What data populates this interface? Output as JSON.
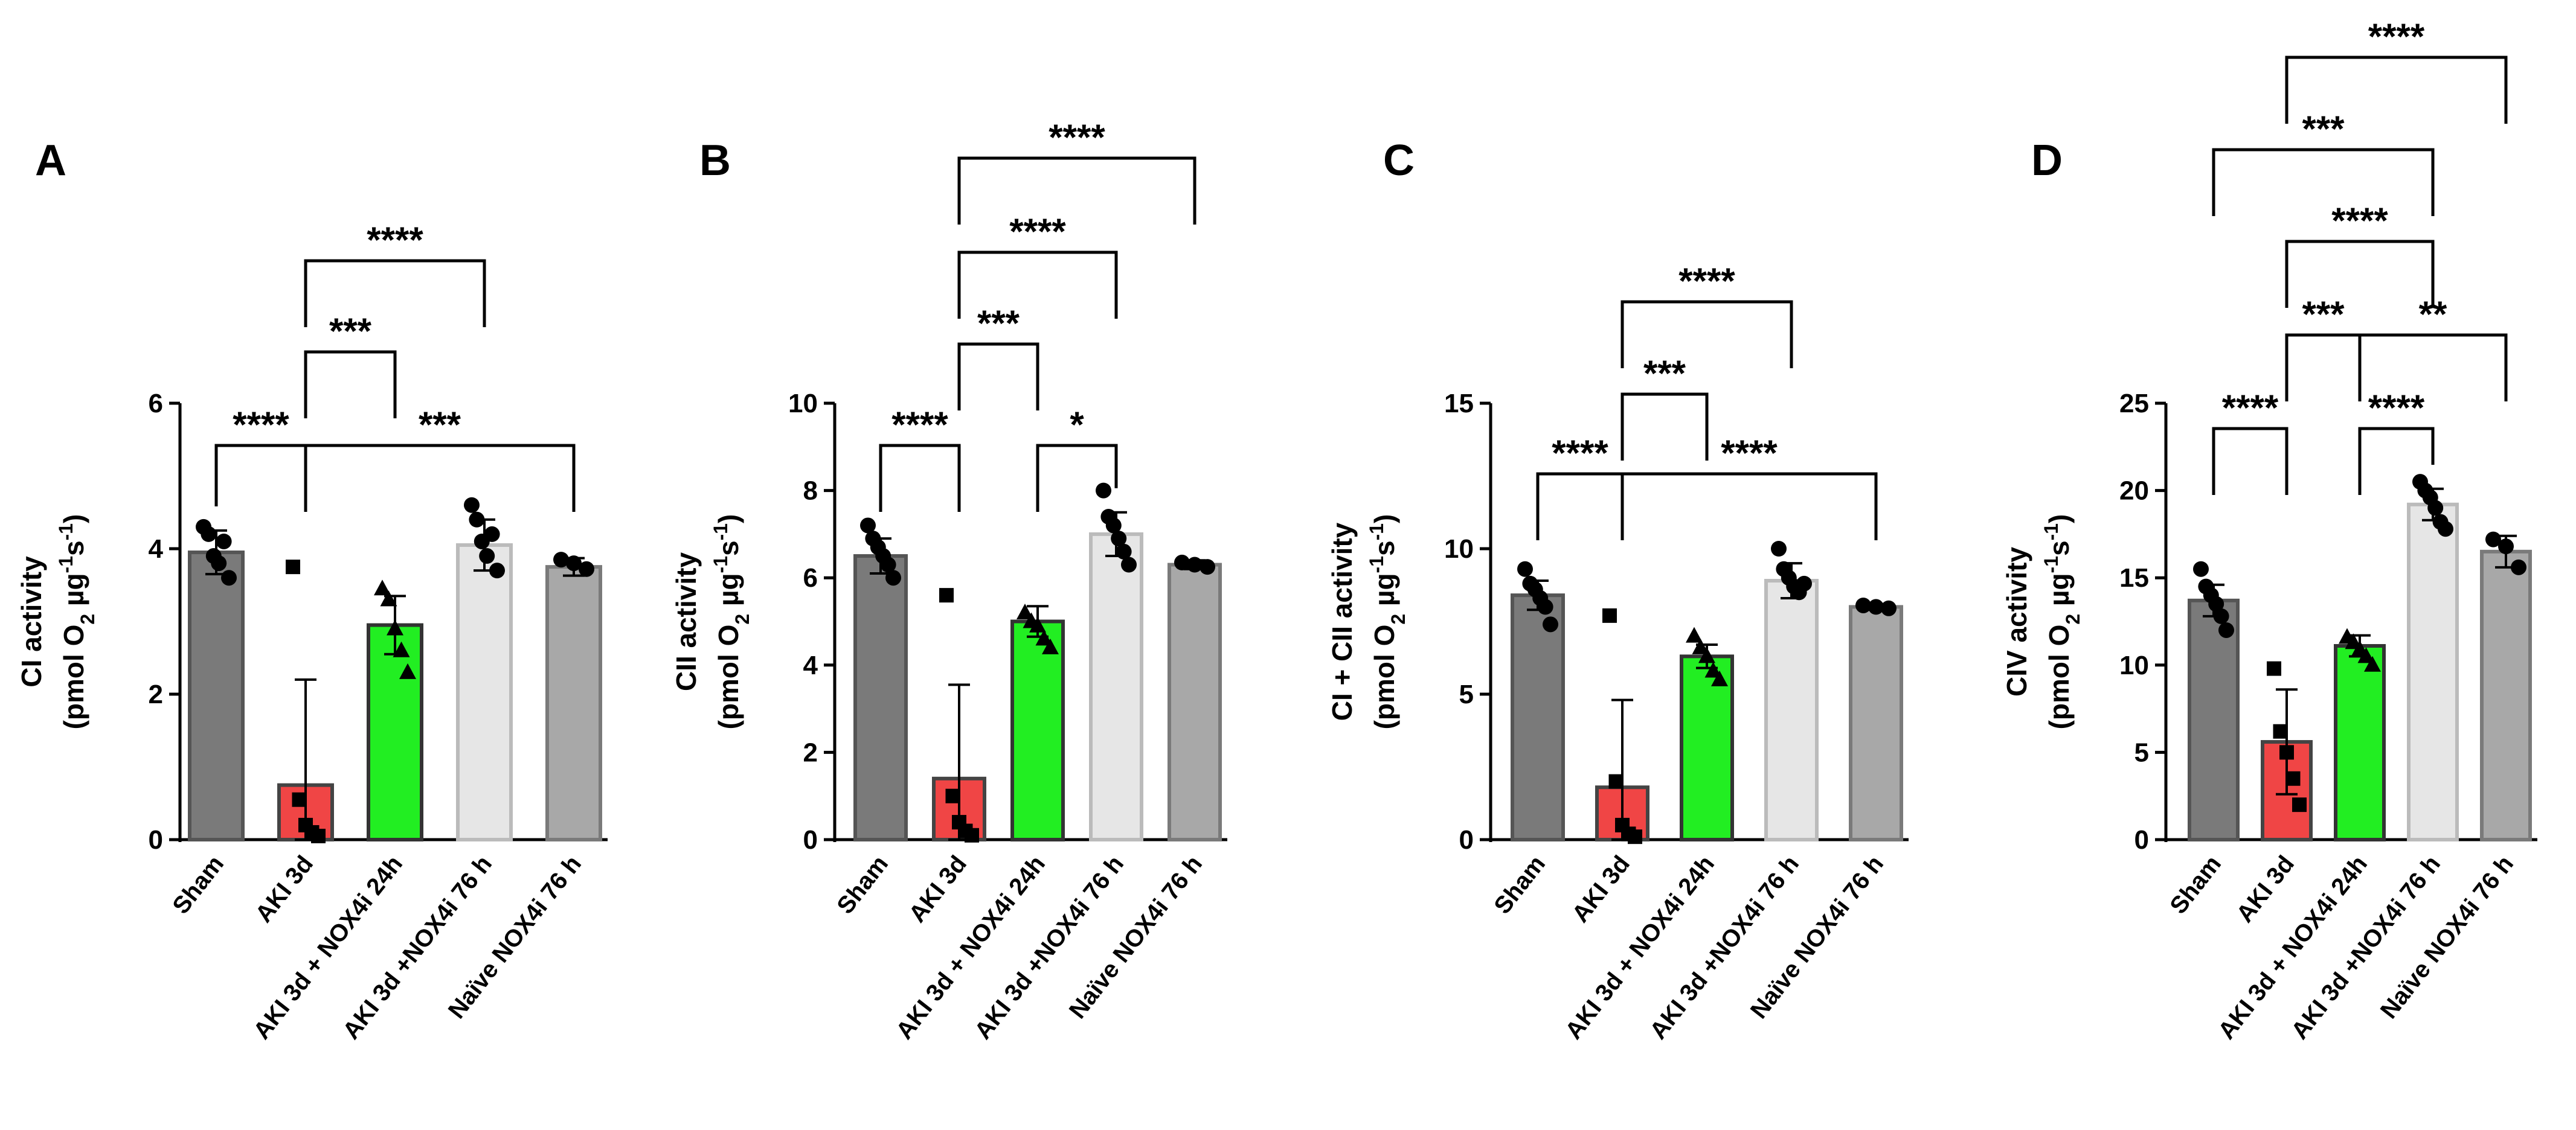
{
  "colors": {
    "sham": "#7a7a7a",
    "aki": "#f04545",
    "aki_nox24": "#22ee22",
    "aki_nox76": "#e6e6e6",
    "naive": "#a8a8a8",
    "ink": "#000000"
  },
  "chart_data": [
    {
      "panel": "A",
      "type": "bar",
      "categories": [
        "Sham",
        "AKI 3d",
        "AKI 3d + NOX4i 24h",
        "AKI 3d +NOX4i 76 h",
        "Naïve NOX4i 76 h"
      ],
      "values": [
        3.95,
        0.75,
        2.95,
        4.05,
        3.75
      ],
      "errors": [
        0.3,
        1.45,
        0.4,
        0.35,
        0.12
      ],
      "points": [
        [
          4.3,
          4.2,
          3.9,
          3.8,
          4.1,
          3.6
        ],
        [
          3.75,
          0.55,
          0.2,
          0.1,
          0.05
        ],
        [
          3.45,
          3.3,
          2.9,
          2.6,
          2.3
        ],
        [
          4.6,
          4.4,
          4.1,
          3.9,
          4.2,
          3.7
        ],
        [
          3.85,
          3.8,
          3.72
        ]
      ],
      "markers": [
        "circle",
        "square",
        "triangle",
        "circle",
        "circle"
      ],
      "ylabel": "CI activity",
      "ylabel2": "(pmol O",
      "ylabel_sub": "2",
      "ylabel_unit": " µg",
      "ylabel_sup1": "-1",
      "ylabel_s": "s",
      "ylabel_sup2": "-1",
      "ylabel_close": ")",
      "ylim": [
        0,
        6
      ],
      "yticks": [
        "0",
        "2",
        "4",
        "6"
      ],
      "brackets": [
        {
          "from": 0,
          "to": 1,
          "level": 1,
          "label": "****"
        },
        {
          "from": 1,
          "to": 4,
          "level": 1,
          "label": "***"
        },
        {
          "from": 1,
          "to": 2,
          "level": 2,
          "label": "***"
        },
        {
          "from": 1,
          "to": 3,
          "level": 3,
          "label": "****"
        }
      ]
    },
    {
      "panel": "B",
      "type": "bar",
      "categories": [
        "Sham",
        "AKI 3d",
        "AKI 3d + NOX4i 24h",
        "AKI 3d +NOX4i 76 h",
        "Naïve NOX4i 76 h"
      ],
      "values": [
        6.5,
        1.4,
        5.0,
        7.0,
        6.3
      ],
      "errors": [
        0.4,
        2.15,
        0.35,
        0.5,
        0.1
      ],
      "points": [
        [
          7.2,
          6.9,
          6.7,
          6.5,
          6.3,
          6.0
        ],
        [
          5.6,
          1.0,
          0.4,
          0.2,
          0.1
        ],
        [
          5.2,
          5.0,
          4.9,
          4.6,
          4.4
        ],
        [
          8.0,
          7.4,
          7.2,
          6.9,
          6.6,
          6.3
        ],
        [
          6.35,
          6.3,
          6.25
        ]
      ],
      "markers": [
        "circle",
        "square",
        "triangle",
        "circle",
        "circle"
      ],
      "ylabel": "CII activity",
      "ylabel2": "(pmol O",
      "ylabel_sub": "2",
      "ylabel_unit": " µg",
      "ylabel_sup1": "-1",
      "ylabel_s": "s",
      "ylabel_sup2": "-1",
      "ylabel_close": ")",
      "ylim": [
        0,
        10
      ],
      "yticks": [
        "0",
        "2",
        "4",
        "6",
        "8",
        "10"
      ],
      "brackets": [
        {
          "from": 0,
          "to": 1,
          "level": 1,
          "label": "****"
        },
        {
          "from": 2,
          "to": 3,
          "level": 1,
          "label": "*"
        },
        {
          "from": 1,
          "to": 2,
          "level": 2,
          "label": "***"
        },
        {
          "from": 1,
          "to": 3,
          "level": 3,
          "label": "****"
        },
        {
          "from": 1,
          "to": 4,
          "level": 4,
          "label": "****"
        }
      ]
    },
    {
      "panel": "C",
      "type": "bar",
      "categories": [
        "Sham",
        "AKI 3d",
        "AKI 3d + NOX4i 24h",
        "AKI 3d +NOX4i 76 h",
        "Naïve NOX4i 76 h"
      ],
      "values": [
        8.4,
        1.8,
        6.3,
        8.9,
        8.0
      ],
      "errors": [
        0.5,
        3.0,
        0.4,
        0.6,
        0.1
      ],
      "points": [
        [
          9.3,
          8.8,
          8.6,
          8.3,
          8.0,
          7.4
        ],
        [
          7.7,
          2.0,
          0.5,
          0.2,
          0.1
        ],
        [
          7.0,
          6.6,
          6.3,
          5.8,
          5.5
        ],
        [
          10.0,
          9.3,
          9.0,
          8.7,
          8.5,
          8.8
        ],
        [
          8.05,
          8.0,
          7.95
        ]
      ],
      "markers": [
        "circle",
        "square",
        "triangle",
        "circle",
        "circle"
      ],
      "ylabel": "CI + CII activity",
      "ylabel2": "(pmol O",
      "ylabel_sub": "2",
      "ylabel_unit": " µg",
      "ylabel_sup1": "-1",
      "ylabel_s": "s",
      "ylabel_sup2": "-1",
      "ylabel_close": ")",
      "ylim": [
        0,
        15
      ],
      "yticks": [
        "0",
        "5",
        "10",
        "15"
      ],
      "brackets": [
        {
          "from": 0,
          "to": 1,
          "level": 1,
          "label": "****"
        },
        {
          "from": 1,
          "to": 4,
          "level": 1,
          "label": "****"
        },
        {
          "from": 1,
          "to": 2,
          "level": 2,
          "label": "***"
        },
        {
          "from": 1,
          "to": 3,
          "level": 3,
          "label": "****"
        }
      ]
    },
    {
      "panel": "D",
      "type": "bar",
      "categories": [
        "Sham",
        "AKI 3d",
        "AKI 3d + NOX4i 24h",
        "AKI 3d +NOX4i 76 h",
        "Naïve NOX4i 76 h"
      ],
      "values": [
        13.7,
        5.6,
        11.1,
        19.2,
        16.5
      ],
      "errors": [
        0.9,
        3.0,
        0.6,
        0.9,
        0.9
      ],
      "points": [
        [
          15.5,
          14.5,
          14.0,
          13.5,
          12.8,
          12.0
        ],
        [
          9.8,
          6.2,
          5.0,
          3.5,
          2.0
        ],
        [
          11.6,
          11.3,
          10.9,
          10.5,
          10.0
        ],
        [
          20.5,
          20.0,
          19.6,
          19.0,
          18.2,
          17.8
        ],
        [
          17.2,
          16.8,
          15.6
        ]
      ],
      "markers": [
        "circle",
        "square",
        "triangle",
        "circle",
        "circle"
      ],
      "ylabel": "CIV activity",
      "ylabel2": "(pmol O",
      "ylabel_sub": "2",
      "ylabel_unit": " µg",
      "ylabel_sup1": "-1",
      "ylabel_s": "s",
      "ylabel_sup2": "-1",
      "ylabel_close": ")",
      "ylim": [
        0,
        25
      ],
      "yticks": [
        "0",
        "5",
        "10",
        "15",
        "20",
        "25"
      ],
      "brackets": [
        {
          "from": 0,
          "to": 1,
          "level": 1,
          "label": "****"
        },
        {
          "from": 2,
          "to": 3,
          "level": 1,
          "label": "****"
        },
        {
          "from": 1,
          "to": 2,
          "level": 2,
          "label": "***"
        },
        {
          "from": 2,
          "to": 4,
          "level": 2,
          "label": "**"
        },
        {
          "from": 1,
          "to": 3,
          "level": 3,
          "label": "****"
        },
        {
          "from": 0,
          "to": 3,
          "level": 4,
          "label": "***"
        },
        {
          "from": 1,
          "to": 4,
          "level": 5,
          "label": "****"
        }
      ]
    }
  ]
}
